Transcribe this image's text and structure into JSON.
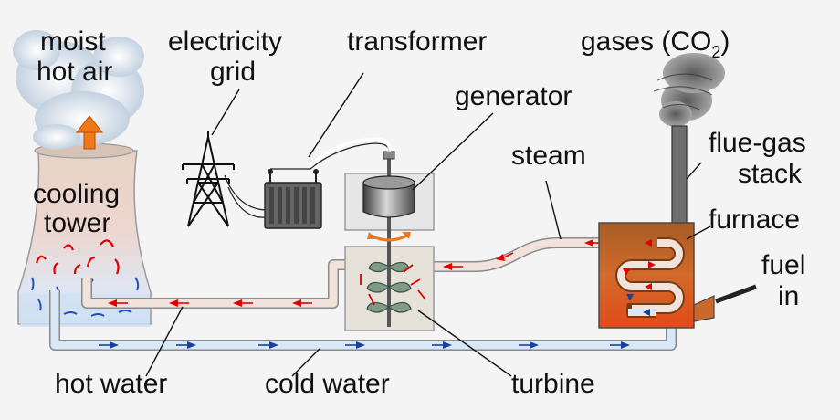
{
  "labels": {
    "moist_hot_air_1": "moist",
    "moist_hot_air_2": "hot air",
    "electricity_grid_1": "electricity",
    "electricity_grid_2": "grid",
    "transformer": "transformer",
    "generator": "generator",
    "gases_prefix": "gases (CO",
    "gases_sub": "2",
    "gases_suffix": ")",
    "steam": "steam",
    "flue_gas_stack_1": "flue-gas",
    "flue_gas_stack_2": "stack",
    "cooling_tower_1": "cooling",
    "cooling_tower_2": "tower",
    "furnace": "furnace",
    "fuel_in_1": "fuel",
    "fuel_in_2": "in",
    "hot_water": "hot water",
    "cold_water": "cold water",
    "turbine": "turbine"
  },
  "colors": {
    "background": "#f4f4f4",
    "hot_pipe": "#f2e2dc",
    "cold_pipe": "#d9e8f6",
    "hot_arrow": "#e00000",
    "cold_arrow": "#1a3fa0",
    "furnace": "#c96a2c",
    "stack": "#6e6e6e",
    "updraft_arrow": "#f07818"
  }
}
